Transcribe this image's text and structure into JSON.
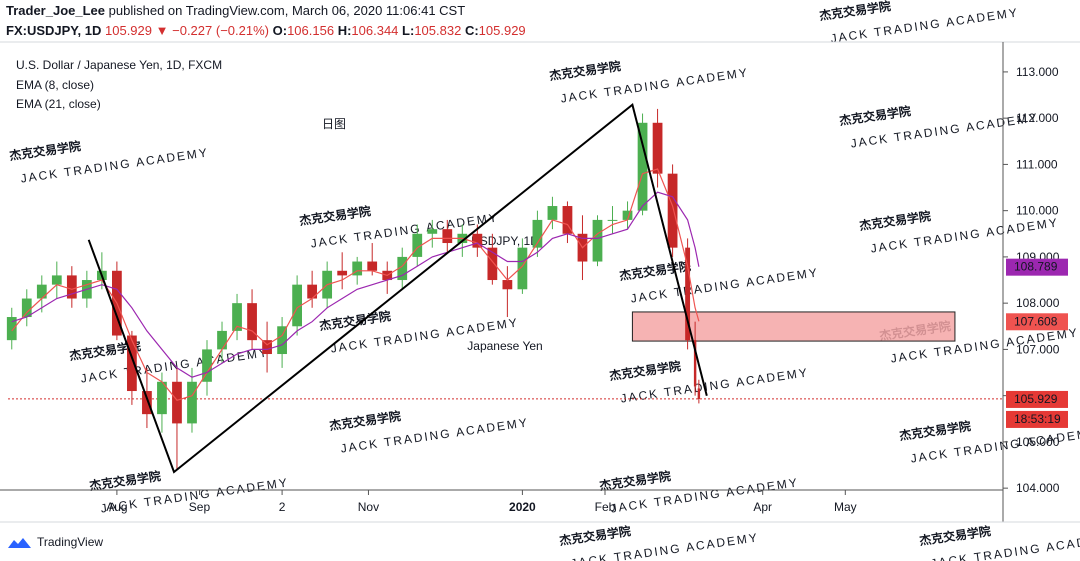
{
  "header": {
    "author": "Trader_Joe_Lee",
    "published": "published on TradingView.com, March 06, 2020 11:06:41 CST",
    "symbol": "FX:USDJPY, 1D",
    "change": "−0.227 (−0.21%)",
    "ohlc_labels": [
      "O:",
      "H:",
      "L:",
      "C:"
    ]
  },
  "annotation": "日图",
  "countdown": "18:53:19",
  "watermark": {
    "title": "杰克交易学院",
    "subtitle": "JACK TRADING ACADEMY"
  },
  "symbol_watermark": [
    "USDJPY, 1D",
    "Japanese Yen"
  ],
  "brand": "TradingView",
  "chart_data": {
    "type": "candlestick",
    "title": "U.S. Dollar / Japanese Yen, 1D, FXCM",
    "x": [
      -6,
      -2,
      2,
      6,
      10,
      14,
      18,
      22,
      26,
      30,
      34,
      38,
      42,
      46,
      50,
      54,
      58,
      62,
      66,
      70,
      74,
      78,
      82,
      86,
      90,
      94,
      98,
      102,
      106,
      110,
      114,
      118,
      122,
      126,
      130,
      134,
      138,
      142,
      146,
      150,
      154,
      158,
      162,
      166,
      170,
      174,
      176,
      177
    ],
    "open": [
      107.2,
      107.7,
      108.1,
      108.4,
      108.6,
      108.1,
      108.5,
      108.7,
      107.3,
      106.1,
      105.6,
      106.3,
      105.4,
      106.3,
      107.0,
      107.4,
      108.0,
      107.2,
      106.9,
      107.5,
      108.4,
      108.1,
      108.7,
      108.6,
      108.9,
      108.7,
      108.5,
      109.0,
      109.5,
      109.6,
      109.3,
      109.5,
      109.2,
      108.5,
      108.3,
      109.2,
      109.8,
      110.1,
      109.5,
      108.9,
      109.8,
      109.8,
      110.0,
      111.9,
      110.8,
      109.2,
      107.2,
      106.156
    ],
    "high": [
      107.9,
      108.3,
      108.6,
      108.9,
      108.8,
      108.7,
      109.1,
      108.9,
      107.4,
      106.6,
      106.5,
      106.6,
      106.6,
      107.2,
      107.6,
      108.2,
      108.3,
      107.6,
      107.7,
      108.6,
      108.7,
      108.9,
      109.1,
      109.0,
      109.3,
      108.9,
      109.2,
      109.7,
      109.8,
      109.8,
      109.7,
      109.7,
      109.5,
      108.8,
      109.4,
      110.0,
      110.3,
      110.2,
      109.9,
      109.9,
      110.1,
      110.2,
      112.1,
      112.2,
      111.0,
      109.4,
      107.6,
      106.344
    ],
    "low": [
      107.0,
      107.5,
      107.8,
      108.1,
      107.9,
      107.9,
      108.3,
      107.2,
      105.8,
      105.3,
      105.2,
      104.4,
      105.2,
      106.0,
      106.7,
      107.2,
      107.0,
      106.5,
      106.6,
      107.3,
      107.9,
      107.9,
      108.3,
      108.4,
      108.6,
      108.2,
      108.3,
      108.8,
      109.2,
      109.1,
      109.0,
      109.0,
      108.4,
      107.7,
      108.2,
      109.0,
      109.6,
      109.3,
      108.5,
      108.8,
      109.5,
      109.6,
      109.9,
      110.5,
      109.0,
      107.0,
      106.0,
      105.832
    ],
    "close": [
      107.7,
      108.1,
      108.4,
      108.6,
      108.1,
      108.5,
      108.7,
      107.3,
      106.1,
      105.6,
      106.3,
      105.4,
      106.3,
      107.0,
      107.4,
      108.0,
      107.2,
      106.9,
      107.5,
      108.4,
      108.1,
      108.7,
      108.6,
      108.9,
      108.7,
      108.5,
      109.0,
      109.5,
      109.6,
      109.3,
      109.5,
      109.2,
      108.5,
      108.3,
      109.2,
      109.8,
      110.1,
      109.5,
      108.9,
      109.8,
      109.8,
      110.0,
      111.9,
      110.8,
      109.2,
      107.2,
      106.2,
      105.929
    ],
    "up_color": "#4caf50",
    "down_color": "#c62828",
    "series": [
      {
        "name": "EMA (8, close)",
        "color": "#ef5350",
        "values": [
          107.4,
          107.8,
          108.1,
          108.4,
          108.3,
          108.4,
          108.5,
          108.0,
          107.2,
          106.5,
          106.3,
          105.9,
          106.0,
          106.5,
          107.0,
          107.5,
          107.4,
          107.1,
          107.3,
          107.9,
          108.1,
          108.4,
          108.5,
          108.7,
          108.7,
          108.6,
          108.8,
          109.2,
          109.4,
          109.4,
          109.4,
          109.3,
          108.9,
          108.5,
          108.8,
          109.3,
          109.8,
          109.7,
          109.2,
          109.5,
          109.7,
          109.8,
          110.8,
          110.9,
          110.1,
          108.8,
          107.9,
          107.608
        ]
      },
      {
        "name": "EMA (21, close)",
        "color": "#9c27b0",
        "values": [
          107.6,
          107.7,
          107.9,
          108.1,
          108.2,
          108.3,
          108.4,
          108.3,
          107.9,
          107.4,
          107.0,
          106.6,
          106.4,
          106.5,
          106.7,
          106.9,
          107.0,
          107.0,
          107.1,
          107.4,
          107.6,
          107.9,
          108.1,
          108.3,
          108.4,
          108.5,
          108.6,
          108.8,
          109.0,
          109.1,
          109.2,
          109.3,
          109.1,
          108.9,
          108.9,
          109.1,
          109.4,
          109.5,
          109.4,
          109.4,
          109.5,
          109.6,
          110.1,
          110.4,
          110.3,
          109.8,
          109.2,
          108.789
        ]
      }
    ],
    "trendline": {
      "x": [
        14.5,
        37.2,
        159.3,
        179.1
      ],
      "y": [
        109.37,
        104.35,
        112.29,
        106.0
      ]
    },
    "zone": {
      "x": [
        159.3,
        245.2
      ],
      "y": [
        107.18,
        107.81
      ],
      "color": "#f4a6a6"
    },
    "xlim": [
      -7,
      258
    ],
    "xticks": [
      {
        "value": 22,
        "label": "Aug"
      },
      {
        "value": 44,
        "label": "Sep"
      },
      {
        "value": 66,
        "label": "2"
      },
      {
        "value": 89,
        "label": "Nov"
      },
      {
        "value": 130,
        "label": "2020"
      },
      {
        "value": 152,
        "label": "Feb"
      },
      {
        "value": 194,
        "label": "Apr"
      },
      {
        "value": 216,
        "label": "May"
      }
    ],
    "ylim": [
      103.96,
      113.69
    ],
    "yticks": [
      {
        "value": 104,
        "label": "104.000"
      },
      {
        "value": 105,
        "label": "105.000"
      },
      {
        "value": 106,
        "label": "106.000"
      },
      {
        "value": 107,
        "label": "107.000"
      },
      {
        "value": 108,
        "label": "108.000"
      },
      {
        "value": 109,
        "label": "109.000"
      },
      {
        "value": 110,
        "label": "110.000"
      },
      {
        "value": 111,
        "label": "111.000"
      },
      {
        "value": 112,
        "label": "112.000"
      },
      {
        "value": 113,
        "label": "113.000"
      }
    ]
  }
}
